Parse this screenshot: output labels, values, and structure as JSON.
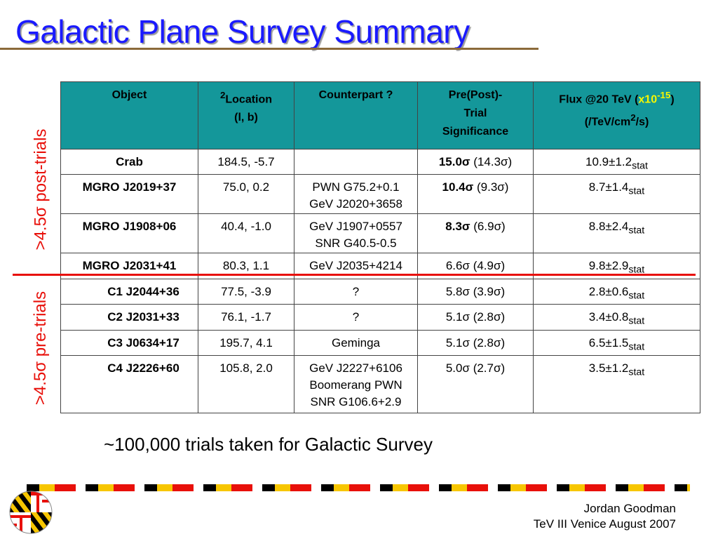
{
  "slide": {
    "title": "Galactic Plane Survey Summary",
    "side_label_post": ">4.5σ post-trials",
    "side_label_pre": ">4.5σ pre-trials",
    "note": "~100,000 trials taken for Galactic Survey",
    "footer": {
      "line1": "Jordan Goodman",
      "line2": "TeV III Venice August 2007"
    }
  },
  "table": {
    "headers": {
      "object": "Object",
      "location_sup": "2",
      "location": "Location",
      "location_coords": "(l, b)",
      "counterpart": "Counterpart ?",
      "significance_1": "Pre(Post)-",
      "significance_2": "Trial",
      "significance_3": "Significance",
      "flux_pre": "Flux @20 TeV (",
      "flux_mult": "x10",
      "flux_exp": "-15",
      "flux_post": ")",
      "flux_units_pre": "(/TeV/cm",
      "flux_units_exp": "2",
      "flux_units_post": "/s)"
    },
    "rows": [
      {
        "object": "Crab",
        "location": "184.5, -5.7",
        "counterpart": [],
        "sig_pre": "15.0σ",
        "sig_post": " (14.3σ)",
        "flux": "10.9±1.2",
        "flux_sub": "stat"
      },
      {
        "object": "MGRO J2019+37",
        "location": "75.0,  0.2",
        "counterpart": [
          "PWN G75.2+0.1",
          "GeV J2020+3658"
        ],
        "sig_pre": "10.4σ",
        "sig_post": " (9.3σ)",
        "flux": "8.7±1.4",
        "flux_sub": "stat"
      },
      {
        "object": "MGRO J1908+06",
        "location": "40.4, -1.0",
        "counterpart": [
          "GeV J1907+0557",
          "SNR G40.5-0.5"
        ],
        "sig_pre": "8.3σ",
        "sig_post": " (6.9σ)",
        "flux": "8.8±2.4",
        "flux_sub": "stat"
      },
      {
        "object": "MGRO J2031+41",
        "location": "80.3,  1.1",
        "counterpart": [
          "GeV J2035+4214"
        ],
        "sig_pre": "6.6σ (4.9σ)",
        "sig_post": "",
        "flux": "9.8±2.9",
        "flux_sub": "stat"
      },
      {
        "object": "C1 J2044+36",
        "location": "77.5, -3.9",
        "counterpart": [
          "?"
        ],
        "sig_pre": "5.8σ (3.9σ)",
        "sig_post": "",
        "flux": "2.8±0.6",
        "flux_sub": "stat"
      },
      {
        "object": "C2 J2031+33",
        "location": "76.1, -1.7",
        "counterpart": [
          "?"
        ],
        "sig_pre": "5.1σ (2.8σ)",
        "sig_post": "",
        "flux": "3.4±0.8",
        "flux_sub": "stat"
      },
      {
        "object": "C3 J0634+17",
        "location": "195.7,  4.1",
        "counterpart": [
          "Geminga"
        ],
        "sig_pre": "5.1σ (2.8σ)",
        "sig_post": "",
        "flux": "6.5±1.5",
        "flux_sub": "stat"
      },
      {
        "object": "C4 J2226+60",
        "location": "105.8,  2.0",
        "counterpart": [
          "GeV J2227+6106",
          "Boomerang PWN",
          "SNR G106.6+2.9"
        ],
        "sig_pre": "5.0σ (2.7σ)",
        "sig_post": "",
        "flux": "3.5±1.2",
        "flux_sub": "stat"
      }
    ]
  },
  "colors": {
    "title": "#1a1aff",
    "header_bg": "#14979a",
    "accent_red": "#e8100a",
    "highlight_yellow": "#f7f700",
    "title_rule": "#8b6a3a"
  },
  "icons": {
    "logo": "maryland-flag-logo-icon"
  }
}
